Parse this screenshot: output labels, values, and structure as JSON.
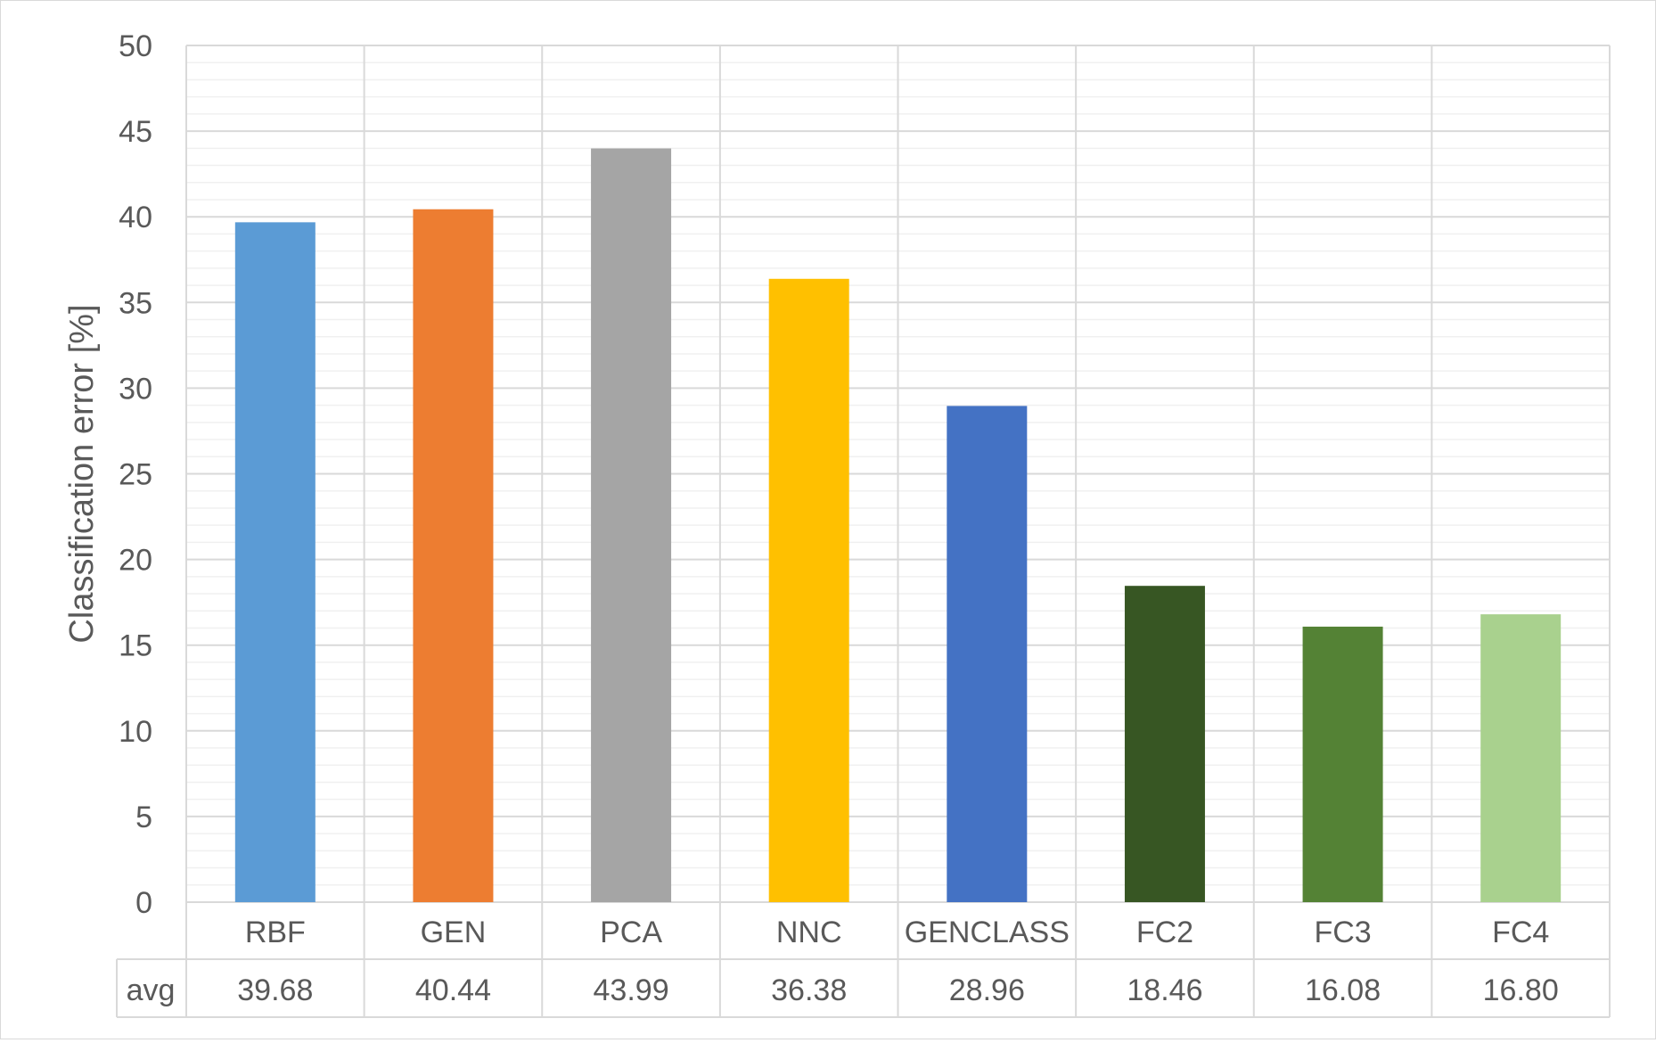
{
  "chart_data": {
    "type": "bar",
    "ylabel": "Classification error [%]",
    "ylim": [
      0,
      50
    ],
    "y_major_step": 5,
    "y_minor_step": 1,
    "grid": true,
    "categories": [
      "RBF",
      "GEN",
      "PCA",
      "NNC",
      "GENCLASS",
      "FC2",
      "FC3",
      "FC4"
    ],
    "values": [
      39.68,
      40.44,
      43.99,
      36.38,
      28.96,
      18.46,
      16.08,
      16.8
    ],
    "bar_colors": [
      "#5b9bd5",
      "#ed7d31",
      "#a5a5a5",
      "#ffc000",
      "#4472c4",
      "#375623",
      "#548235",
      "#a9d18e"
    ],
    "data_table": {
      "row_label": "avg",
      "cells": [
        "39.68",
        "40.44",
        "43.99",
        "36.38",
        "28.96",
        "18.46",
        "16.08",
        "16.80"
      ]
    }
  }
}
